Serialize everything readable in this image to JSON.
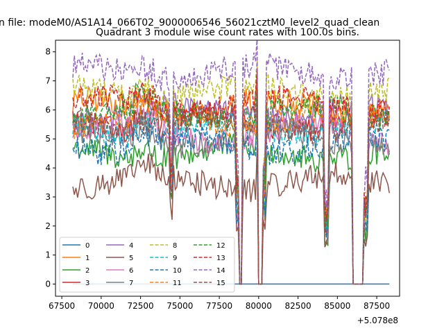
{
  "figure": {
    "suptitle": "n file: modeM0/AS1A14_066T02_9000006546_56021cztM0_level2_quad_clean",
    "title": "Quadrant 3 module wise count rates with 100.0s bins.",
    "offset_label": "+5.078e8"
  },
  "chart_data": {
    "type": "line",
    "title": "Quadrant 3 module wise count rates with 100.0s bins.",
    "xlabel": "",
    "ylabel": "",
    "x_offset": 507800000,
    "xlim": [
      67100,
      88950
    ],
    "ylim": [
      -0.42,
      8.4
    ],
    "x_ticks": [
      67500,
      70000,
      72500,
      75000,
      77500,
      80000,
      82500,
      85000,
      87500
    ],
    "x_tick_labels": [
      "67500",
      "70000",
      "72500",
      "75000",
      "77500",
      "80000",
      "82500",
      "85000",
      "87500"
    ],
    "y_ticks": [
      0,
      1,
      2,
      3,
      4,
      5,
      6,
      7,
      8
    ],
    "y_tick_labels": [
      "0",
      "1",
      "2",
      "3",
      "4",
      "5",
      "6",
      "7",
      "8"
    ],
    "x_range_data": [
      68200,
      88300
    ],
    "gaps": [
      [
        78750,
        78900
      ],
      [
        79950,
        80250
      ],
      [
        86000,
        86600
      ]
    ],
    "legend_location": "lower-left",
    "legend_ncol": 4,
    "series": [
      {
        "name": "0",
        "color": "#1f77b4",
        "style": "solid",
        "level": 0.0
      },
      {
        "name": "1",
        "color": "#ff7f0e",
        "style": "solid",
        "level": 6.1
      },
      {
        "name": "2",
        "color": "#2ca02c",
        "style": "solid",
        "level": 4.5
      },
      {
        "name": "3",
        "color": "#d62728",
        "style": "solid",
        "level": 5.6
      },
      {
        "name": "4",
        "color": "#9467bd",
        "style": "solid",
        "level": 5.9
      },
      {
        "name": "5",
        "color": "#8c564b",
        "style": "solid",
        "level": 3.5
      },
      {
        "name": "6",
        "color": "#e377c2",
        "style": "solid",
        "level": 5.2
      },
      {
        "name": "7",
        "color": "#7f7f7f",
        "style": "solid",
        "level": 5.0
      },
      {
        "name": "8",
        "color": "#bcbd22",
        "style": "dashed",
        "level": 6.6
      },
      {
        "name": "9",
        "color": "#17becf",
        "style": "dashed",
        "level": 5.4
      },
      {
        "name": "10",
        "color": "#1f77b4",
        "style": "dashed",
        "level": 4.8
      },
      {
        "name": "11",
        "color": "#ff7f0e",
        "style": "dashed",
        "level": 5.7
      },
      {
        "name": "12",
        "color": "#2ca02c",
        "style": "dashed",
        "level": 5.9
      },
      {
        "name": "13",
        "color": "#d62728",
        "style": "dashed",
        "level": 6.2
      },
      {
        "name": "14",
        "color": "#9467bd",
        "style": "dashed",
        "level": 7.3
      },
      {
        "name": "15",
        "color": "#8c564b",
        "style": "dashed",
        "level": 5.5
      }
    ]
  }
}
